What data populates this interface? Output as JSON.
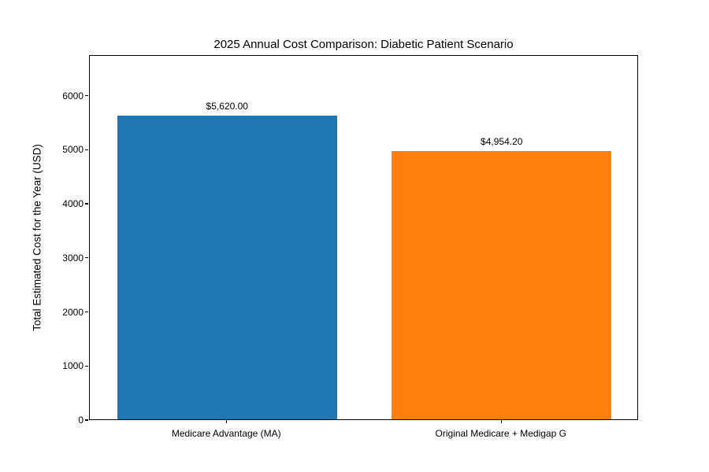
{
  "figure": {
    "title": "2025 Annual Cost Comparison: Diabetic Patient Scenario",
    "background_color": "#ffffff",
    "spine_color": "#000000"
  },
  "chart_data": {
    "type": "bar",
    "title": "2025 Annual Cost Comparison: Diabetic Patient Scenario",
    "xlabel": "",
    "ylabel": "Total Estimated Cost for the Year (USD)",
    "categories": [
      "Medicare Advantage (MA)",
      "Original Medicare + Medigap G"
    ],
    "values": [
      5620.0,
      4954.2
    ],
    "value_labels": [
      "$5,620.00",
      "$4,954.20"
    ],
    "bar_colors": [
      "#1f77b4",
      "#ff7f0e"
    ],
    "ylim": [
      0,
      6750
    ],
    "yticks": [
      0,
      1000,
      2000,
      3000,
      4000,
      5000,
      6000
    ],
    "ytick_labels": [
      "0",
      "1000",
      "2000",
      "3000",
      "4000",
      "5000",
      "6000"
    ],
    "grid": false,
    "legend": null,
    "bar_width_fraction": 0.8
  }
}
